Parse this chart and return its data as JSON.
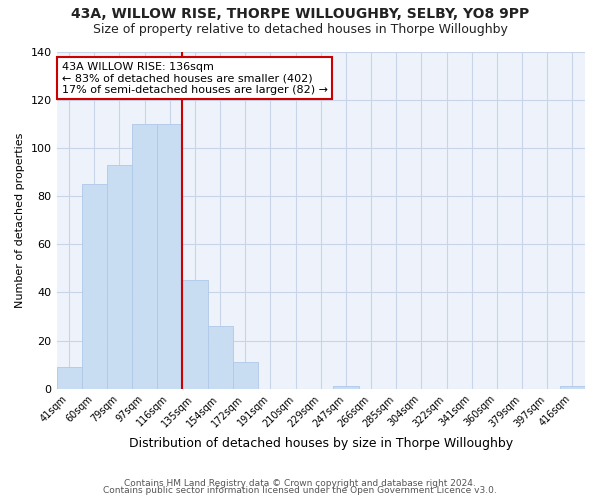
{
  "title1": "43A, WILLOW RISE, THORPE WILLOUGHBY, SELBY, YO8 9PP",
  "title2": "Size of property relative to detached houses in Thorpe Willoughby",
  "xlabel": "Distribution of detached houses by size in Thorpe Willoughby",
  "ylabel": "Number of detached properties",
  "bin_labels": [
    "41sqm",
    "60sqm",
    "79sqm",
    "97sqm",
    "116sqm",
    "135sqm",
    "154sqm",
    "172sqm",
    "191sqm",
    "210sqm",
    "229sqm",
    "247sqm",
    "266sqm",
    "285sqm",
    "304sqm",
    "322sqm",
    "341sqm",
    "360sqm",
    "379sqm",
    "397sqm",
    "416sqm"
  ],
  "bar_heights": [
    9,
    85,
    93,
    110,
    110,
    45,
    26,
    11,
    0,
    0,
    0,
    1,
    0,
    0,
    0,
    0,
    0,
    0,
    0,
    0,
    1
  ],
  "bar_color": "#c8ddf2",
  "bar_edge_color": "#aec8e8",
  "annotation_text": "43A WILLOW RISE: 136sqm\n← 83% of detached houses are smaller (402)\n17% of semi-detached houses are larger (82) →",
  "annotation_box_color": "white",
  "annotation_box_edge_color": "#cc0000",
  "vline_color": "#cc0000",
  "ylim": [
    0,
    140
  ],
  "yticks": [
    0,
    20,
    40,
    60,
    80,
    100,
    120,
    140
  ],
  "footer1": "Contains HM Land Registry data © Crown copyright and database right 2024.",
  "footer2": "Contains public sector information licensed under the Open Government Licence v3.0.",
  "title_fontsize": 10,
  "subtitle_fontsize": 9,
  "bg_color": "#ffffff",
  "plot_bg_color": "#eef3fb",
  "grid_color": "#c8d4e8"
}
